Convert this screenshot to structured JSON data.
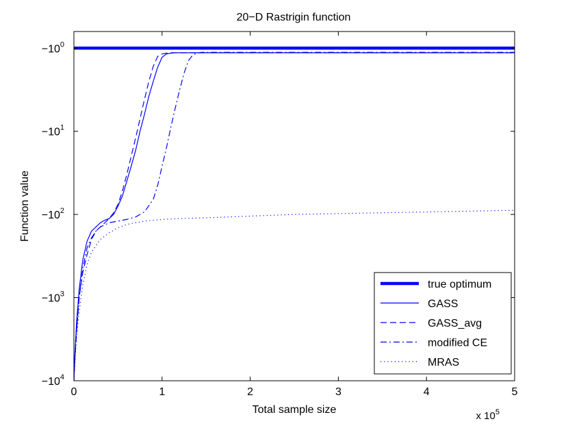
{
  "chart_data": {
    "type": "line",
    "title": "20−D Rastrigin function",
    "xlabel": "Total sample size",
    "ylabel": "Function value",
    "x_multiplier_label": "x 10",
    "x_multiplier_exponent": "5",
    "xlim": [
      0,
      5
    ],
    "x_scale_factor": 100000,
    "y_scale": "log (negated values)",
    "ylim_log10_magnitude": [
      4.0,
      -0.2
    ],
    "x_ticks": [
      0,
      1,
      2,
      3,
      4,
      5
    ],
    "x_tick_labels": [
      "0",
      "1",
      "2",
      "3",
      "4",
      "5"
    ],
    "y_ticks": [
      {
        "magnitude": 0,
        "base": "−10",
        "exp": "0"
      },
      {
        "magnitude": 1,
        "base": "−10",
        "exp": "1"
      },
      {
        "magnitude": 2,
        "base": "−10",
        "exp": "2"
      },
      {
        "magnitude": 3,
        "base": "−10",
        "exp": "3"
      },
      {
        "magnitude": 4,
        "base": "−10",
        "exp": "4"
      }
    ],
    "legend_location": "bottom-right",
    "series": [
      {
        "name": "true optimum",
        "style": "thick-solid",
        "color": "#0000FF",
        "x": [
          0,
          5
        ],
        "log10_magnitude": [
          0,
          0
        ]
      },
      {
        "name": "GASS",
        "style": "solid",
        "color": "#0000FF",
        "x": [
          0.0,
          0.01,
          0.03,
          0.06,
          0.1,
          0.15,
          0.2,
          0.25,
          0.3,
          0.35,
          0.4,
          0.45,
          0.5,
          0.55,
          0.6,
          0.65,
          0.7,
          0.75,
          0.8,
          0.85,
          0.9,
          0.95,
          1.0,
          1.05,
          1.1,
          1.15,
          1.2,
          1.3,
          1.4,
          1.5,
          2.0,
          3.0,
          4.0,
          5.0
        ],
        "log10_magnitude": [
          4.0,
          3.7,
          3.3,
          2.9,
          2.55,
          2.32,
          2.2,
          2.15,
          2.1,
          2.07,
          2.05,
          2.0,
          1.9,
          1.78,
          1.6,
          1.42,
          1.23,
          1.0,
          0.8,
          0.58,
          0.4,
          0.23,
          0.11,
          0.07,
          0.06,
          0.055,
          0.055,
          0.055,
          0.055,
          0.055,
          0.055,
          0.055,
          0.055,
          0.055
        ]
      },
      {
        "name": "GASS_avg",
        "style": "dashed",
        "color": "#0000FF",
        "x": [
          0.0,
          0.01,
          0.03,
          0.06,
          0.1,
          0.15,
          0.2,
          0.25,
          0.3,
          0.35,
          0.4,
          0.45,
          0.5,
          0.55,
          0.6,
          0.65,
          0.7,
          0.75,
          0.8,
          0.85,
          0.9,
          0.95,
          1.0,
          1.05,
          1.1,
          1.15,
          1.2,
          1.3,
          1.4,
          1.5,
          2.0,
          3.0,
          4.0,
          5.0
        ],
        "log10_magnitude": [
          4.0,
          3.75,
          3.4,
          3.0,
          2.7,
          2.48,
          2.3,
          2.2,
          2.15,
          2.1,
          2.05,
          1.98,
          1.88,
          1.72,
          1.52,
          1.3,
          1.08,
          0.85,
          0.62,
          0.4,
          0.22,
          0.1,
          0.07,
          0.06,
          0.055,
          0.055,
          0.055,
          0.055,
          0.055,
          0.055,
          0.055,
          0.055,
          0.055,
          0.055
        ]
      },
      {
        "name": "modified CE",
        "style": "dashdot",
        "color": "#0000FF",
        "x": [
          0.0,
          0.01,
          0.03,
          0.06,
          0.1,
          0.15,
          0.2,
          0.25,
          0.3,
          0.4,
          0.5,
          0.6,
          0.7,
          0.8,
          0.9,
          0.95,
          1.0,
          1.05,
          1.1,
          1.15,
          1.2,
          1.25,
          1.3,
          1.35,
          1.4,
          1.45,
          1.5,
          2.0,
          3.0,
          4.0,
          5.0
        ],
        "log10_magnitude": [
          4.0,
          3.75,
          3.4,
          3.0,
          2.65,
          2.4,
          2.28,
          2.2,
          2.15,
          2.1,
          2.08,
          2.06,
          2.03,
          1.97,
          1.82,
          1.65,
          1.42,
          1.2,
          0.95,
          0.72,
          0.5,
          0.3,
          0.15,
          0.08,
          0.06,
          0.05,
          0.05,
          0.05,
          0.05,
          0.05,
          0.05
        ]
      },
      {
        "name": "MRAS",
        "style": "dotted",
        "color": "#0000FF",
        "x": [
          0.0,
          0.02,
          0.05,
          0.1,
          0.15,
          0.2,
          0.3,
          0.4,
          0.5,
          0.6,
          0.8,
          1.0,
          1.2,
          1.5,
          2.0,
          2.5,
          3.0,
          3.5,
          4.0,
          4.5,
          5.0
        ],
        "log10_magnitude": [
          4.0,
          3.62,
          3.25,
          2.85,
          2.6,
          2.45,
          2.3,
          2.22,
          2.16,
          2.12,
          2.08,
          2.06,
          2.05,
          2.04,
          2.02,
          2.0,
          1.99,
          1.98,
          1.97,
          1.96,
          1.95
        ]
      }
    ]
  }
}
